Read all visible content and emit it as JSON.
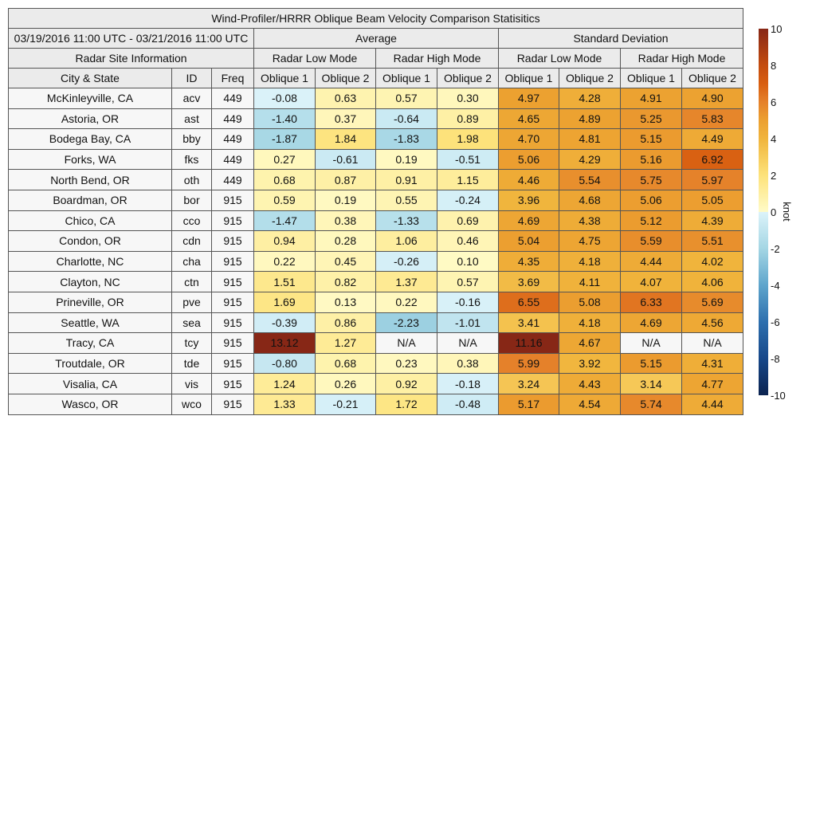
{
  "chart_data": {
    "type": "table",
    "title": "Wind-Profiler/HRRR Oblique Beam Velocity Comparison Statisitics",
    "period": "03/19/2016 11:00 UTC - 03/21/2016 11:00 UTC",
    "groups": [
      "Average",
      "Standard Deviation"
    ],
    "site_info_label": "Radar Site Information",
    "modes": [
      "Radar Low Mode",
      "Radar High Mode",
      "Radar Low Mode",
      "Radar High Mode"
    ],
    "columns": [
      "City & State",
      "ID",
      "Freq",
      "Oblique 1",
      "Oblique 2",
      "Oblique 1",
      "Oblique 2",
      "Oblique 1",
      "Oblique 2",
      "Oblique 1",
      "Oblique 2"
    ],
    "rows": [
      [
        "McKinleyville, CA",
        "acv",
        "449",
        "-0.08",
        "0.63",
        "0.57",
        "0.30",
        "4.97",
        "4.28",
        "4.91",
        "4.90"
      ],
      [
        "Astoria, OR",
        "ast",
        "449",
        "-1.40",
        "0.37",
        "-0.64",
        "0.89",
        "4.65",
        "4.89",
        "5.25",
        "5.83"
      ],
      [
        "Bodega Bay, CA",
        "bby",
        "449",
        "-1.87",
        "1.84",
        "-1.83",
        "1.98",
        "4.70",
        "4.81",
        "5.15",
        "4.49"
      ],
      [
        "Forks, WA",
        "fks",
        "449",
        "0.27",
        "-0.61",
        "0.19",
        "-0.51",
        "5.06",
        "4.29",
        "5.16",
        "6.92"
      ],
      [
        "North Bend, OR",
        "oth",
        "449",
        "0.68",
        "0.87",
        "0.91",
        "1.15",
        "4.46",
        "5.54",
        "5.75",
        "5.97"
      ],
      [
        "Boardman, OR",
        "bor",
        "915",
        "0.59",
        "0.19",
        "0.55",
        "-0.24",
        "3.96",
        "4.68",
        "5.06",
        "5.05"
      ],
      [
        "Chico, CA",
        "cco",
        "915",
        "-1.47",
        "0.38",
        "-1.33",
        "0.69",
        "4.69",
        "4.38",
        "5.12",
        "4.39"
      ],
      [
        "Condon, OR",
        "cdn",
        "915",
        "0.94",
        "0.28",
        "1.06",
        "0.46",
        "5.04",
        "4.75",
        "5.59",
        "5.51"
      ],
      [
        "Charlotte, NC",
        "cha",
        "915",
        "0.22",
        "0.45",
        "-0.26",
        "0.10",
        "4.35",
        "4.18",
        "4.44",
        "4.02"
      ],
      [
        "Clayton, NC",
        "ctn",
        "915",
        "1.51",
        "0.82",
        "1.37",
        "0.57",
        "3.69",
        "4.11",
        "4.07",
        "4.06"
      ],
      [
        "Prineville, OR",
        "pve",
        "915",
        "1.69",
        "0.13",
        "0.22",
        "-0.16",
        "6.55",
        "5.08",
        "6.33",
        "5.69"
      ],
      [
        "Seattle, WA",
        "sea",
        "915",
        "-0.39",
        "0.86",
        "-2.23",
        "-1.01",
        "3.41",
        "4.18",
        "4.69",
        "4.56"
      ],
      [
        "Tracy, CA",
        "tcy",
        "915",
        "13.12",
        "1.27",
        "N/A",
        "N/A",
        "11.16",
        "4.67",
        "N/A",
        "N/A"
      ],
      [
        "Troutdale, OR",
        "tde",
        "915",
        "-0.80",
        "0.68",
        "0.23",
        "0.38",
        "5.99",
        "3.92",
        "5.15",
        "4.31"
      ],
      [
        "Visalia, CA",
        "vis",
        "915",
        "1.24",
        "0.26",
        "0.92",
        "-0.18",
        "3.24",
        "4.43",
        "3.14",
        "4.77"
      ],
      [
        "Wasco, OR",
        "wco",
        "915",
        "1.33",
        "-0.21",
        "1.72",
        "-0.48",
        "5.17",
        "4.54",
        "5.74",
        "4.44"
      ]
    ],
    "colorbar": {
      "range": [
        -10,
        10
      ],
      "ticks": [
        "10",
        "8",
        "6",
        "4",
        "2",
        "0",
        "-2",
        "-4",
        "-6",
        "-8",
        "-10"
      ],
      "label": "knot",
      "colors": {
        "-10": "#0b2350",
        "-8": "#17488a",
        "-6": "#2d6fae",
        "-4": "#5ea5cc",
        "-2": "#a4d6e4",
        "0": "#fffbc8",
        "2": "#fde27a",
        "4": "#f0b43c",
        "6": "#e5812a",
        "8": "#c44c0f",
        "10": "#872716"
      }
    }
  }
}
